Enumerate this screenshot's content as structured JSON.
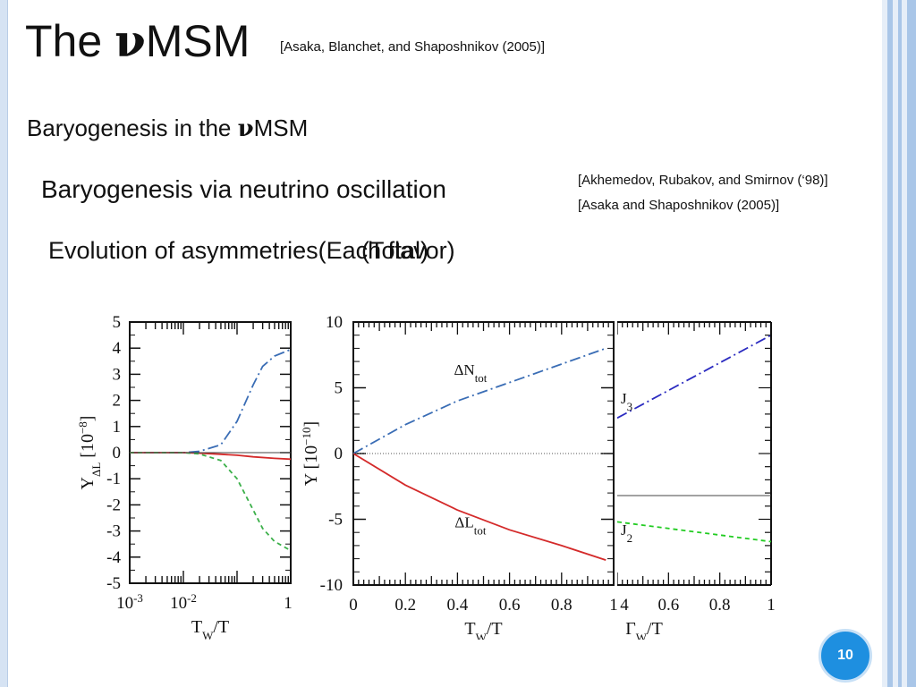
{
  "slide": {
    "title_pre": "The ",
    "title_nu": "ν",
    "title_post": "MSM",
    "title_ref": "[Asaka, Blanchet, and Shaposhnikov (2005)]",
    "subtitle_pre": "Baryogenesis in the ",
    "subtitle_nu": "ν",
    "subtitle_post": "MSM",
    "section": "Baryogenesis via neutrino oscillation",
    "ref_a": "[Akhemedov, Rubakov, and Smirnov (‘98)]",
    "ref_b": "[Asaka and Shaposhnikov (2005)]",
    "evolution_a": "Evolution of asymmetries(Each flavor)",
    "evolution_b": "(Total)",
    "page_number": "10"
  },
  "colors": {
    "blue_dashdot": "#3a6db5",
    "red_solid": "#d42a2a",
    "green_dashed": "#3cb04a",
    "navy_dashdot": "#2b2bc0",
    "bright_green_dashed": "#22cc22",
    "accent_badge": "#1e8fe0"
  },
  "chart_data": [
    {
      "type": "line",
      "xscale": "log",
      "xlim": [
        0.001,
        1
      ],
      "ylim": [
        -5,
        5
      ],
      "xticks": [
        "10-3",
        "10-2",
        "1"
      ],
      "yticks": [
        "5",
        "4",
        "3",
        "2",
        "1",
        "0",
        "-1",
        "-2",
        "-3",
        "-4",
        "-5"
      ],
      "xlabel": "TW/T",
      "ylabel": "YΔL [10-8]",
      "series": [
        {
          "color": "#3a6db5",
          "style": "dashdot",
          "x": [
            0.001,
            0.01,
            0.02,
            0.05,
            0.1,
            0.2,
            0.3,
            0.5,
            1
          ],
          "y": [
            0,
            0,
            0.05,
            0.3,
            1.2,
            2.6,
            3.3,
            3.7,
            3.95
          ]
        },
        {
          "color": "#d42a2a",
          "style": "solid",
          "x": [
            0.001,
            0.01,
            0.02,
            0.05,
            0.1,
            0.2,
            0.5,
            1
          ],
          "y": [
            0,
            0,
            -0.02,
            -0.06,
            -0.1,
            -0.16,
            -0.22,
            -0.25
          ]
        },
        {
          "color": "#3cb04a",
          "style": "dashed",
          "x": [
            0.001,
            0.01,
            0.02,
            0.05,
            0.1,
            0.2,
            0.3,
            0.5,
            1
          ],
          "y": [
            0,
            0,
            -0.05,
            -0.3,
            -1.0,
            -2.2,
            -2.9,
            -3.4,
            -3.75
          ]
        },
        {
          "color": "#444444",
          "style": "thin",
          "x": [
            0.001,
            1
          ],
          "y": [
            0,
            0
          ]
        }
      ]
    },
    {
      "type": "line",
      "xlim": [
        0,
        1
      ],
      "ylim": [
        -10,
        10
      ],
      "xticks": [
        "0",
        "0.2",
        "0.4",
        "0.6",
        "0.8",
        "1"
      ],
      "yticks": [
        "10",
        "5",
        "0",
        "-5",
        "-10"
      ],
      "xlabel": "TW/T",
      "ylabel": "Y [10-10]",
      "annotations": [
        "ΔNtot",
        "ΔLtot"
      ],
      "series": [
        {
          "color": "#3a6db5",
          "style": "dashdot",
          "x": [
            0,
            0.2,
            0.4,
            0.6,
            0.8,
            0.97
          ],
          "y": [
            0,
            2.2,
            4.0,
            5.4,
            6.8,
            8.0
          ]
        },
        {
          "color": "#d42a2a",
          "style": "solid",
          "x": [
            0,
            0.2,
            0.4,
            0.6,
            0.8,
            0.97
          ],
          "y": [
            0,
            -2.4,
            -4.3,
            -5.8,
            -7.0,
            -8.1
          ]
        },
        {
          "color": "#555555",
          "style": "dotted",
          "x": [
            0,
            0.97
          ],
          "y": [
            0,
            0
          ]
        }
      ]
    },
    {
      "type": "line",
      "xlim": [
        0.4,
        1
      ],
      "xticks": [
        "4",
        "0.6",
        "0.8",
        "1"
      ],
      "xlabel": "ΓW/T",
      "annotations": [
        "J3",
        "J2"
      ],
      "series": [
        {
          "color": "#2b2bc0",
          "style": "dashdot",
          "x": [
            0.4,
            1
          ],
          "y": [
            0.27,
            0.9
          ]
        },
        {
          "color": "#444444",
          "style": "thin",
          "x": [
            0.4,
            1
          ],
          "y": [
            -0.32,
            -0.32
          ]
        },
        {
          "color": "#22cc22",
          "style": "dashed",
          "x": [
            0.4,
            1
          ],
          "y": [
            -0.52,
            -0.67
          ]
        }
      ]
    }
  ]
}
